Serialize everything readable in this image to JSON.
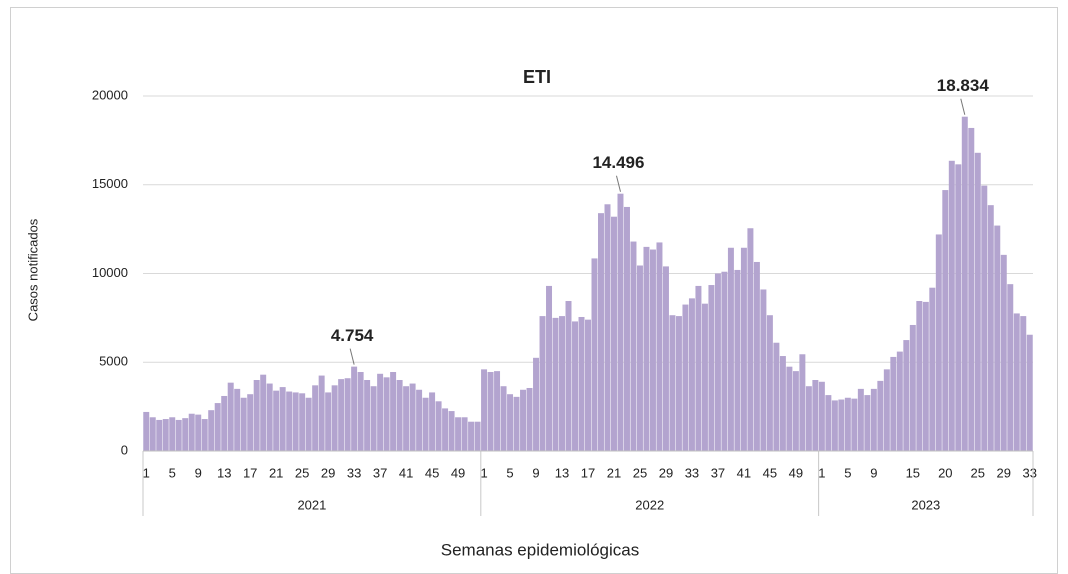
{
  "chart_data": {
    "type": "bar",
    "title": "ETI",
    "y_label": "Casos notificados",
    "x_label": "Semanas epidemiológicas",
    "color": "#b3a4cf",
    "ylim": [
      0,
      20000
    ],
    "yticks": [
      0,
      5000,
      10000,
      15000,
      20000
    ],
    "grid": true,
    "groups": [
      {
        "name": "2021",
        "categories": [
          "1",
          null,
          null,
          null,
          "5",
          null,
          null,
          null,
          "9",
          null,
          null,
          null,
          "13",
          null,
          null,
          null,
          "17",
          null,
          null,
          null,
          "21",
          null,
          null,
          null,
          "25",
          null,
          null,
          null,
          "29",
          null,
          null,
          null,
          "33",
          null,
          null,
          null,
          "37",
          null,
          null,
          null,
          "41",
          null,
          null,
          null,
          "45",
          null,
          null,
          null,
          "49",
          null,
          null,
          null
        ],
        "values": [
          2200,
          1900,
          1750,
          1800,
          1900,
          1750,
          1850,
          2100,
          2050,
          1800,
          2300,
          2700,
          3100,
          3850,
          3500,
          3000,
          3200,
          4000,
          4300,
          3800,
          3400,
          3600,
          3350,
          3300,
          3250,
          3000,
          3700,
          4250,
          3300,
          3700,
          4050,
          4100,
          4754,
          4450,
          4000,
          3650,
          4350,
          4150,
          4450,
          4000,
          3650,
          3800,
          3450,
          3000,
          3300,
          2800,
          2400,
          2250,
          1900,
          1900,
          1650,
          1650
        ],
        "value_labels": [
          null,
          null,
          null,
          null,
          null,
          null,
          null,
          null,
          null,
          null,
          null,
          null,
          null,
          null,
          null,
          null,
          null,
          null,
          null,
          null,
          null,
          null,
          null,
          null,
          null,
          null,
          null,
          null,
          null,
          null,
          null,
          null,
          "4.754",
          null,
          null,
          null,
          null,
          null,
          null,
          null,
          null,
          null,
          null,
          null,
          null,
          null,
          null,
          null,
          null,
          null,
          null,
          null
        ]
      },
      {
        "name": "2022",
        "categories": [
          "1",
          null,
          null,
          null,
          "5",
          null,
          null,
          null,
          "9",
          null,
          null,
          null,
          "13",
          null,
          null,
          null,
          "17",
          null,
          null,
          null,
          "21",
          null,
          null,
          null,
          "25",
          null,
          null,
          null,
          "29",
          null,
          null,
          null,
          "33",
          null,
          null,
          null,
          "37",
          null,
          null,
          null,
          "41",
          null,
          null,
          null,
          "45",
          null,
          null,
          null,
          "49",
          null,
          null,
          null
        ],
        "values": [
          4600,
          4450,
          4500,
          3650,
          3200,
          3050,
          3450,
          3550,
          5250,
          7600,
          9300,
          7500,
          7600,
          8450,
          7300,
          7550,
          7400,
          10850,
          13400,
          13900,
          13200,
          14496,
          13750,
          11800,
          10450,
          11500,
          11350,
          11750,
          10400,
          7650,
          7600,
          8250,
          8600,
          9300,
          8300,
          9350,
          10000,
          10100,
          11450,
          10200,
          11450,
          12550,
          10650,
          9100,
          7650,
          6100,
          5350,
          4750,
          4500,
          5450,
          3650,
          4000
        ],
        "value_labels": [
          null,
          null,
          null,
          null,
          null,
          null,
          null,
          null,
          null,
          null,
          null,
          null,
          null,
          null,
          null,
          null,
          null,
          null,
          null,
          null,
          null,
          "14.496",
          null,
          null,
          null,
          null,
          null,
          null,
          null,
          null,
          null,
          null,
          null,
          null,
          null,
          null,
          null,
          null,
          null,
          null,
          null,
          null,
          null,
          null,
          null,
          null,
          null,
          null,
          null,
          null,
          null,
          null
        ]
      },
      {
        "name": "2023",
        "categories": [
          "1",
          null,
          null,
          null,
          "5",
          null,
          null,
          null,
          "9",
          null,
          null,
          null,
          null,
          null,
          "15",
          null,
          null,
          null,
          null,
          "20",
          null,
          null,
          null,
          null,
          "25",
          null,
          null,
          null,
          "29",
          null,
          null,
          null,
          "33"
        ],
        "values": [
          3900,
          3150,
          2850,
          2900,
          3000,
          2950,
          3500,
          3150,
          3500,
          3950,
          4600,
          5300,
          5600,
          6250,
          7100,
          8450,
          8400,
          9200,
          12200,
          14700,
          16350,
          16150,
          18834,
          18200,
          16800,
          14950,
          13850,
          12700,
          11050,
          9400,
          7750,
          7600,
          6550
        ],
        "value_labels": [
          null,
          null,
          null,
          null,
          null,
          null,
          null,
          null,
          null,
          null,
          null,
          null,
          null,
          null,
          null,
          null,
          null,
          null,
          null,
          null,
          null,
          null,
          "18.834",
          null,
          null,
          null,
          null,
          null,
          null,
          null,
          null,
          null,
          null
        ]
      }
    ]
  }
}
